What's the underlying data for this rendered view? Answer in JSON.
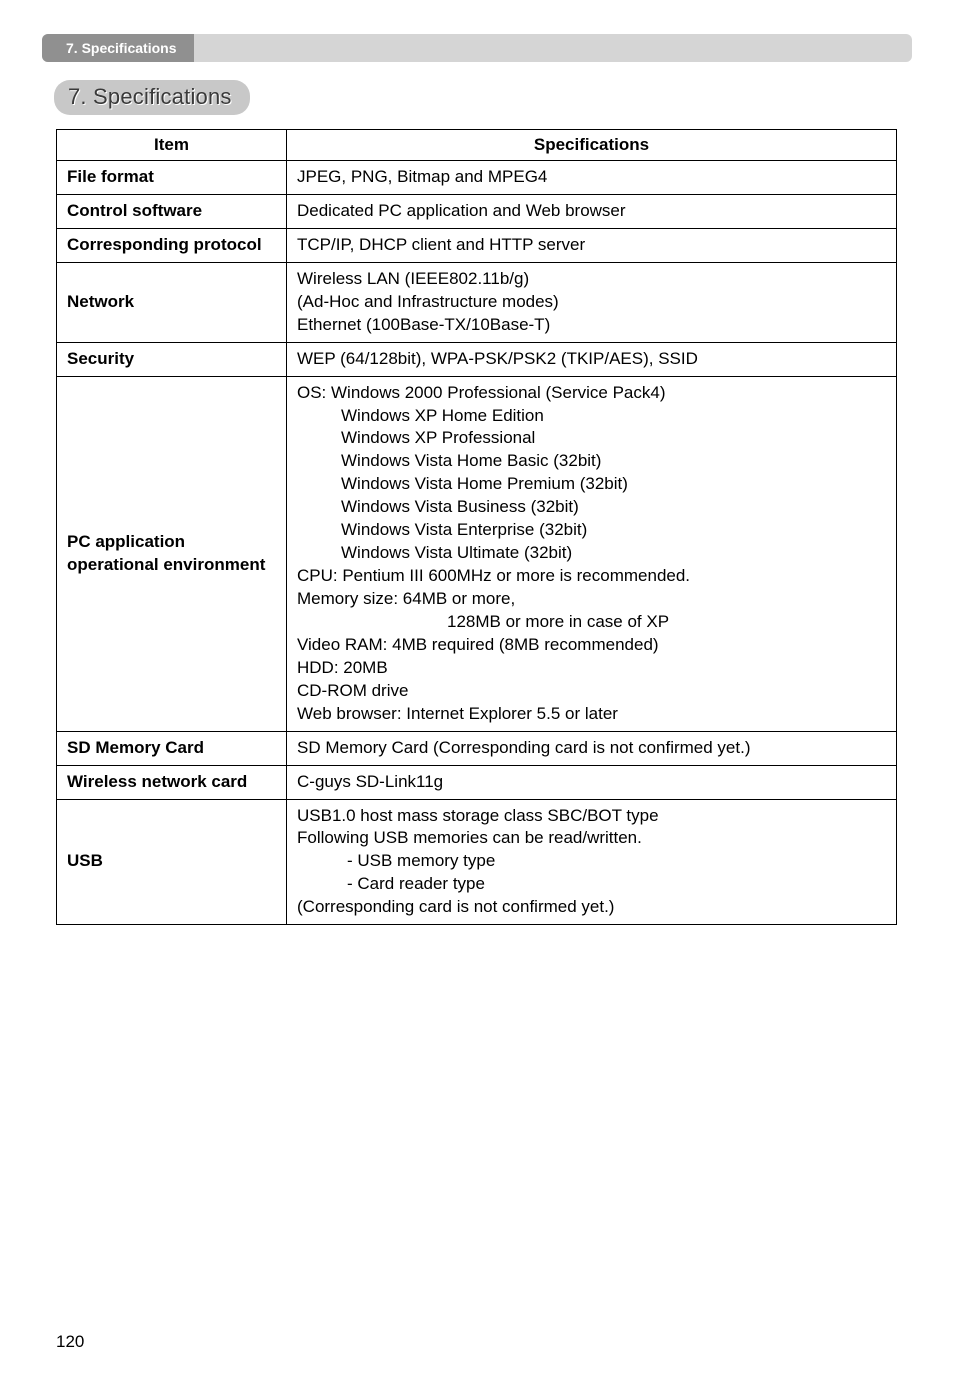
{
  "header": {
    "label": "7. Specifications"
  },
  "section": {
    "title": "7. Specifications"
  },
  "table": {
    "headers": {
      "item": "Item",
      "spec": "Specifications"
    },
    "rows": {
      "file_format": {
        "label": "File format",
        "value": "JPEG, PNG, Bitmap and MPEG4"
      },
      "control_software": {
        "label": "Control software",
        "value": "Dedicated PC application and Web browser"
      },
      "corresponding_protocol": {
        "label": "Corresponding protocol",
        "value": "TCP/IP, DHCP client and HTTP server"
      },
      "network": {
        "label": "Network",
        "line1": "Wireless LAN (IEEE802.11b/g)",
        "line2": "(Ad-Hoc and Infrastructure modes)",
        "line3": "Ethernet (100Base-TX/10Base-T)"
      },
      "security": {
        "label": "Security",
        "value": "WEP (64/128bit), WPA-PSK/PSK2 (TKIP/AES), SSID"
      },
      "pc_app": {
        "label": "PC application operational environment",
        "os_head": "OS: Windows 2000 Professional (Service Pack4)",
        "os1": "Windows XP Home Edition",
        "os2": "Windows XP Professional",
        "os3": "Windows Vista Home Basic (32bit)",
        "os4": "Windows Vista Home Premium (32bit)",
        "os5": "Windows Vista Business (32bit)",
        "os6": "Windows Vista Enterprise (32bit)",
        "os7": "Windows Vista Ultimate (32bit)",
        "cpu": "CPU: Pentium III 600MHz or more is recommended.",
        "mem1": "Memory size: 64MB or more,",
        "mem2": "128MB or more in case of XP",
        "vram": "Video RAM: 4MB required (8MB recommended)",
        "hdd": "HDD: 20MB",
        "cd": "CD-ROM drive",
        "web": "Web browser: Internet Explorer 5.5 or later"
      },
      "sd_memory": {
        "label": "SD Memory Card",
        "value": "SD Memory Card (Corresponding card is not confirmed yet.)"
      },
      "wireless_card": {
        "label": "Wireless network card",
        "value": "C-guys SD-Link11g"
      },
      "usb": {
        "label": "USB",
        "l1": "USB1.0 host mass storage class SBC/BOT type",
        "l2": "Following USB memories can be read/written.",
        "l3": "- USB memory type",
        "l4": "- Card reader type",
        "l5": "(Corresponding card is not confirmed yet.)"
      }
    }
  },
  "pageNumber": "120"
}
